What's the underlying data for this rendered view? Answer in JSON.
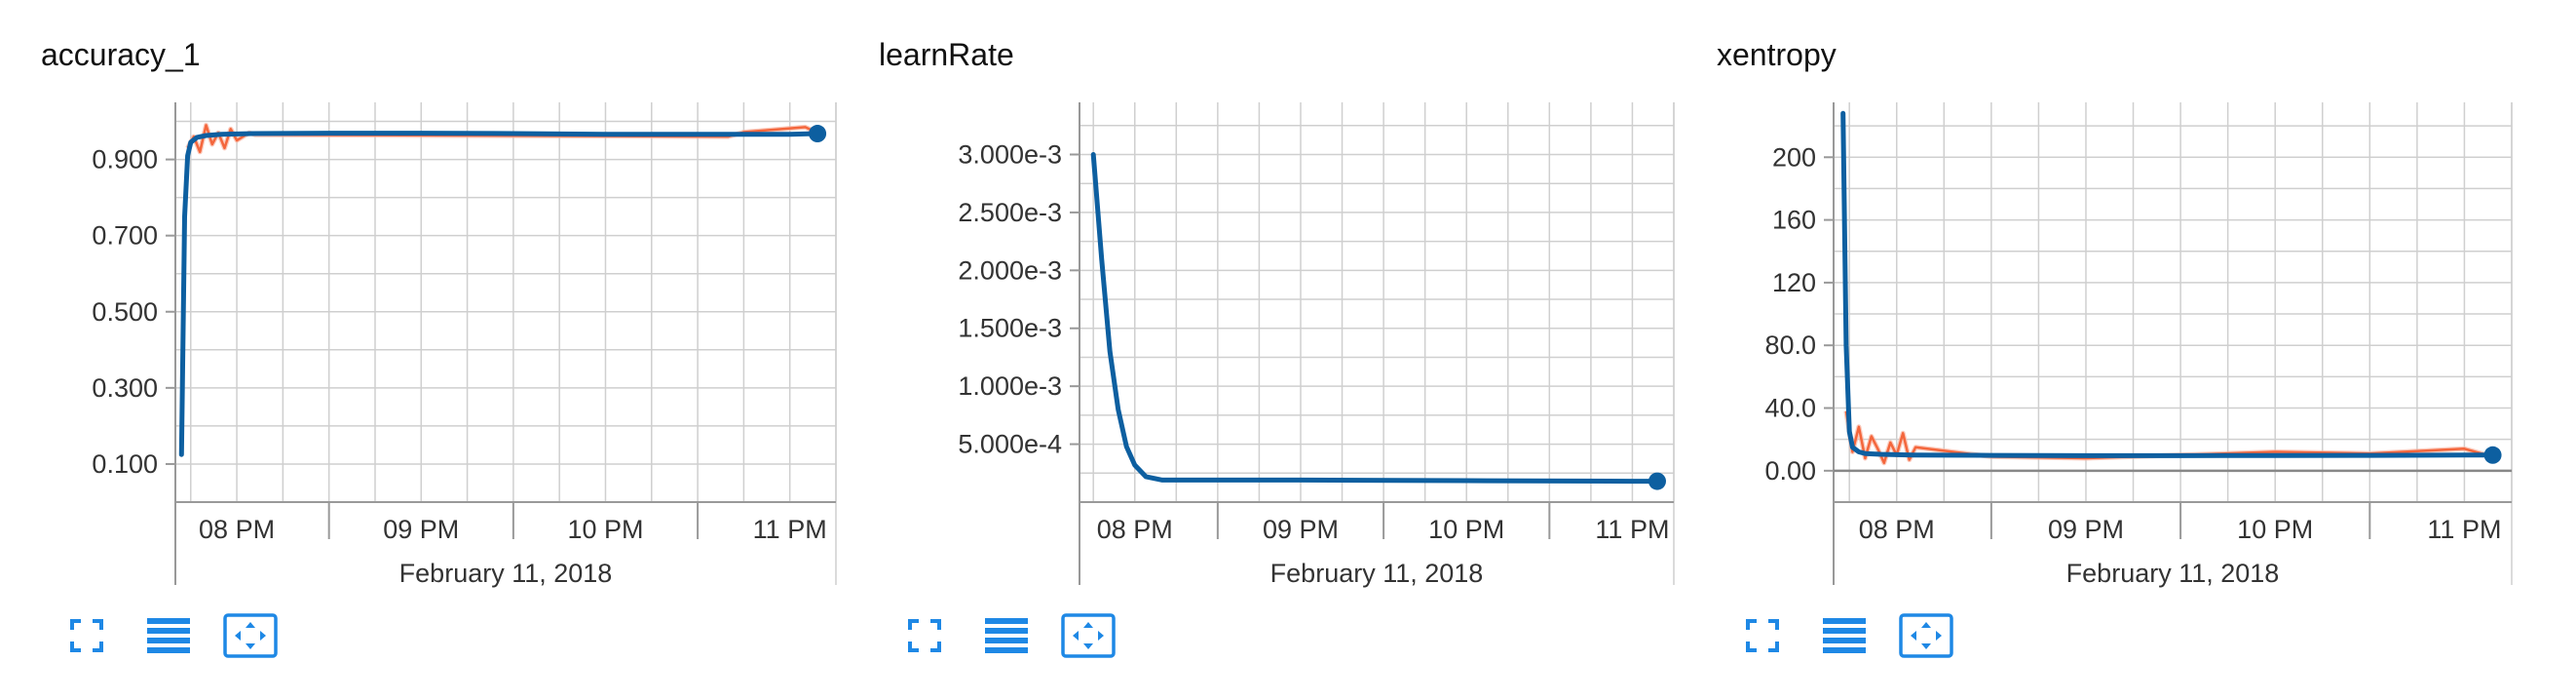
{
  "colors": {
    "smoothed": "#0d5fa0",
    "raw": "#f4663c",
    "raw_faint": "#f9b49f",
    "grid": "#cfcfcf",
    "axis": "#999999",
    "icon": "#1e88e5"
  },
  "x_axis": {
    "date_label": "February 11, 2018",
    "tick_labels": [
      "08 PM",
      "09 PM",
      "10 PM",
      "11 PM"
    ]
  },
  "toolbar_icons": [
    "fullscreen-icon",
    "data-table-icon",
    "fit-domain-icon"
  ],
  "chart_data": [
    {
      "type": "line",
      "title": "accuracy_1",
      "xlabel": "February 11, 2018",
      "xticks": [
        "08 PM",
        "09 PM",
        "10 PM",
        "11 PM"
      ],
      "yticks": [
        "0.100",
        "0.300",
        "0.500",
        "0.700",
        "0.900"
      ],
      "ylim": [
        -0.0,
        1.05
      ],
      "xlim": [
        "19:40",
        "23:15"
      ],
      "grid": true,
      "series": [
        {
          "role": "smoothed",
          "x": [
            "19:42",
            "19:43",
            "19:44",
            "19:45",
            "19:47",
            "19:50",
            "19:55",
            "20:05",
            "20:30",
            "21:00",
            "21:30",
            "22:00",
            "22:30",
            "23:00",
            "23:09"
          ],
          "y": [
            0.125,
            0.75,
            0.91,
            0.945,
            0.958,
            0.963,
            0.966,
            0.968,
            0.969,
            0.969,
            0.968,
            0.966,
            0.966,
            0.966,
            0.968
          ]
        },
        {
          "role": "raw",
          "x": [
            "19:44",
            "19:46",
            "19:48",
            "19:50",
            "19:52",
            "19:54",
            "19:56",
            "19:58",
            "20:00",
            "20:02",
            "20:04",
            "20:06",
            "22:40",
            "22:45",
            "23:05",
            "23:09"
          ],
          "y": [
            0.93,
            0.96,
            0.92,
            0.99,
            0.94,
            0.97,
            0.93,
            0.98,
            0.95,
            0.96,
            0.97,
            0.965,
            0.96,
            0.972,
            0.985,
            0.97
          ]
        }
      ]
    },
    {
      "type": "line",
      "title": "learnRate",
      "xlabel": "February 11, 2018",
      "xticks": [
        "08 PM",
        "09 PM",
        "10 PM",
        "11 PM"
      ],
      "yticks": [
        "5.000e-4",
        "1.000e-3",
        "1.500e-3",
        "2.000e-3",
        "2.500e-3",
        "3.000e-3"
      ],
      "ylim": [
        0.0,
        0.00345
      ],
      "xlim": [
        "19:40",
        "23:15"
      ],
      "grid": true,
      "series": [
        {
          "role": "smoothed",
          "x": [
            "19:45",
            "19:48",
            "19:51",
            "19:54",
            "19:57",
            "20:00",
            "20:04",
            "20:10",
            "21:00",
            "22:00",
            "23:00",
            "23:09"
          ],
          "y": [
            0.003,
            0.0021,
            0.0013,
            0.0008,
            0.00048,
            0.00032,
            0.00022,
            0.00019,
            0.00019,
            0.000185,
            0.00018,
            0.00018
          ]
        }
      ]
    },
    {
      "type": "line",
      "title": "xentropy",
      "xlabel": "February 11, 2018",
      "xticks": [
        "08 PM",
        "09 PM",
        "10 PM",
        "11 PM"
      ],
      "yticks": [
        "0.00",
        "40.0",
        "80.0",
        "120",
        "160",
        "200"
      ],
      "ylim": [
        -20,
        235
      ],
      "xlim": [
        "19:40",
        "23:15"
      ],
      "grid": true,
      "series": [
        {
          "role": "smoothed",
          "x": [
            "19:43",
            "19:44",
            "19:45",
            "19:46",
            "19:48",
            "19:50",
            "19:55",
            "20:05",
            "20:30",
            "21:00",
            "21:30",
            "22:00",
            "22:30",
            "23:00",
            "23:09"
          ],
          "y": [
            228,
            80,
            25,
            15,
            12,
            11,
            10.5,
            10,
            9.8,
            9.6,
            9.6,
            9.7,
            9.8,
            10,
            10
          ]
        },
        {
          "role": "raw",
          "x": [
            "19:44",
            "19:46",
            "19:48",
            "19:50",
            "19:52",
            "19:54",
            "19:56",
            "19:58",
            "20:00",
            "20:02",
            "20:04",
            "20:06",
            "20:30",
            "21:00",
            "21:30",
            "22:00",
            "22:30",
            "23:00",
            "23:09"
          ],
          "y": [
            38,
            12,
            28,
            8,
            22,
            14,
            5,
            18,
            10,
            24,
            7,
            15,
            9,
            8,
            10,
            12,
            11,
            14,
            9
          ]
        }
      ]
    }
  ]
}
